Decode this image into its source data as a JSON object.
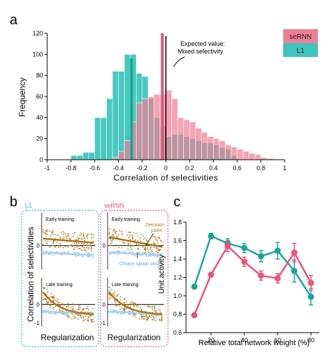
{
  "panels": {
    "a": "a",
    "b": "b",
    "c": "c"
  },
  "colors": {
    "sernn": "#f07f96",
    "l1": "#3fc5bd",
    "sernn_line": "#e8547a",
    "l1_line": "#1aa597",
    "dots": "#b07a1e",
    "dots_blue": "#8ec3e6",
    "curve": "#b27417"
  },
  "panel_a": {
    "xlabel": "Correlation of selectivities",
    "ylabel": "Frequency",
    "xticks": [
      "-1",
      "-0.8",
      "-0.6",
      "-0.4",
      "-0.2",
      "0",
      "0.2",
      "0.4",
      "0.6",
      "0.8",
      "1"
    ],
    "yticks": [
      "0",
      "20",
      "40",
      "60",
      "80",
      "100",
      "120"
    ],
    "annotation_line1": "Expected value:",
    "annotation_line2": "Mixed selectivity",
    "legend": [
      "seRNN",
      "L1"
    ]
  },
  "panel_b": {
    "group_l1": "L1",
    "group_sernn": "seRNN",
    "early": "Early training",
    "late": "Late training",
    "ylabel": "Correlation of selectivities",
    "xlabel_left": "Regularization",
    "xlabel_right": "Regularization",
    "decision_line1": "Decision",
    "decision_line2": "point",
    "choice": "Choice option onset"
  },
  "chart_data": [
    {
      "type": "bar",
      "xlabel": "Correlation of selectivities",
      "ylabel": "Frequency",
      "xlim": [
        -1,
        1
      ],
      "ylim": [
        0,
        120
      ],
      "bin_width": 0.05,
      "series": [
        {
          "name": "seRNN",
          "bin_starts": [
            -0.45,
            -0.4,
            -0.35,
            -0.3,
            -0.25,
            -0.2,
            -0.15,
            -0.1,
            -0.05,
            0.0,
            0.05,
            0.1,
            0.15,
            0.2,
            0.25,
            0.3,
            0.35,
            0.4,
            0.45,
            0.5,
            0.55,
            0.6,
            0.65,
            0.7,
            0.75,
            0.8,
            0.85
          ],
          "values": [
            2,
            8,
            18,
            36,
            54,
            58,
            60,
            62,
            62,
            66,
            58,
            40,
            38,
            36,
            30,
            26,
            22,
            20,
            18,
            14,
            12,
            10,
            8,
            6,
            5,
            2,
            1
          ],
          "mean": -0.03
        },
        {
          "name": "L1",
          "bin_starts": [
            -0.8,
            -0.75,
            -0.7,
            -0.65,
            -0.6,
            -0.55,
            -0.5,
            -0.45,
            -0.4,
            -0.35,
            -0.3,
            -0.25,
            -0.2,
            -0.15,
            -0.1,
            -0.05,
            0.0,
            0.05,
            0.1,
            0.15,
            0.2,
            0.25,
            0.3,
            0.35,
            0.4,
            0.45,
            0.5,
            0.55
          ],
          "values": [
            4,
            4,
            7,
            7,
            40,
            40,
            58,
            84,
            84,
            100,
            100,
            82,
            79,
            58,
            40,
            32,
            22,
            24,
            24,
            22,
            20,
            18,
            16,
            16,
            14,
            12,
            10,
            4
          ],
          "mean": -0.29
        }
      ],
      "reference_line": 0
    },
    {
      "type": "line",
      "xlabel": "Relative total network weight (%)",
      "ylabel": "Unit activity",
      "ylim": [
        0.6,
        1.8
      ],
      "xlim": [
        5,
        85
      ],
      "x": [
        10,
        20,
        30,
        40,
        50,
        60,
        70,
        80
      ],
      "series": [
        {
          "name": "",
          "color": "l1",
          "values": [
            1.1,
            1.65,
            1.57,
            1.52,
            1.43,
            1.49,
            1.27,
            0.99
          ],
          "errors": [
            0.02,
            0.03,
            0.05,
            0.05,
            0.06,
            0.09,
            0.12,
            0.09
          ]
        },
        {
          "name": "",
          "color": "sernn",
          "values": [
            0.79,
            1.23,
            1.54,
            1.37,
            1.22,
            1.19,
            1.47,
            1.14
          ],
          "errors": [
            0.02,
            0.02,
            0.06,
            0.05,
            0.05,
            0.05,
            0.1,
            0.08
          ]
        }
      ],
      "xticks": [
        "20",
        "40",
        "60",
        "80"
      ],
      "yticks": [
        "0.6",
        "0.8",
        "1.0",
        "1.2",
        "1.4",
        "1.6",
        "1.8"
      ]
    }
  ]
}
